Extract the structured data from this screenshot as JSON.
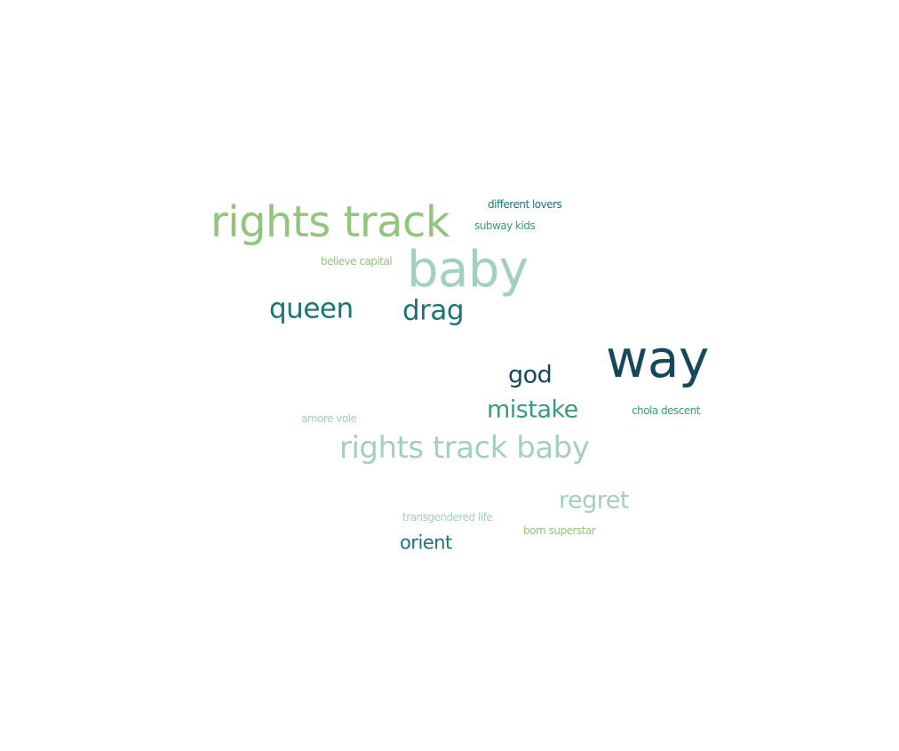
{
  "chart_data": {
    "type": "wordcloud",
    "words": [
      {
        "text": "way",
        "weight": 100,
        "color": "#17485a"
      },
      {
        "text": "rights track",
        "weight": 90,
        "color": "#93c47d"
      },
      {
        "text": "baby",
        "weight": 90,
        "color": "#a3cfbe"
      },
      {
        "text": "rights track baby",
        "weight": 60,
        "color": "#a3cfbe"
      },
      {
        "text": "queen",
        "weight": 52,
        "color": "#1a7474"
      },
      {
        "text": "drag",
        "weight": 52,
        "color": "#1a7474"
      },
      {
        "text": "mistake",
        "weight": 52,
        "color": "#3a9a7c"
      },
      {
        "text": "god",
        "weight": 48,
        "color": "#17485a"
      },
      {
        "text": "regret",
        "weight": 48,
        "color": "#a3cfbe"
      },
      {
        "text": "orient",
        "weight": 38,
        "color": "#1a7474"
      },
      {
        "text": "different lovers",
        "weight": 22,
        "color": "#1a7474"
      },
      {
        "text": "subway kids",
        "weight": 22,
        "color": "#3a9a7c"
      },
      {
        "text": "believe capital",
        "weight": 22,
        "color": "#93c47d"
      },
      {
        "text": "chola descent",
        "weight": 22,
        "color": "#3a9a7c"
      },
      {
        "text": "amore vole",
        "weight": 22,
        "color": "#a3cfbe"
      },
      {
        "text": "transgendered life",
        "weight": 22,
        "color": "#a3cfbe"
      },
      {
        "text": "born superstar",
        "weight": 22,
        "color": "#93c47d"
      }
    ]
  }
}
